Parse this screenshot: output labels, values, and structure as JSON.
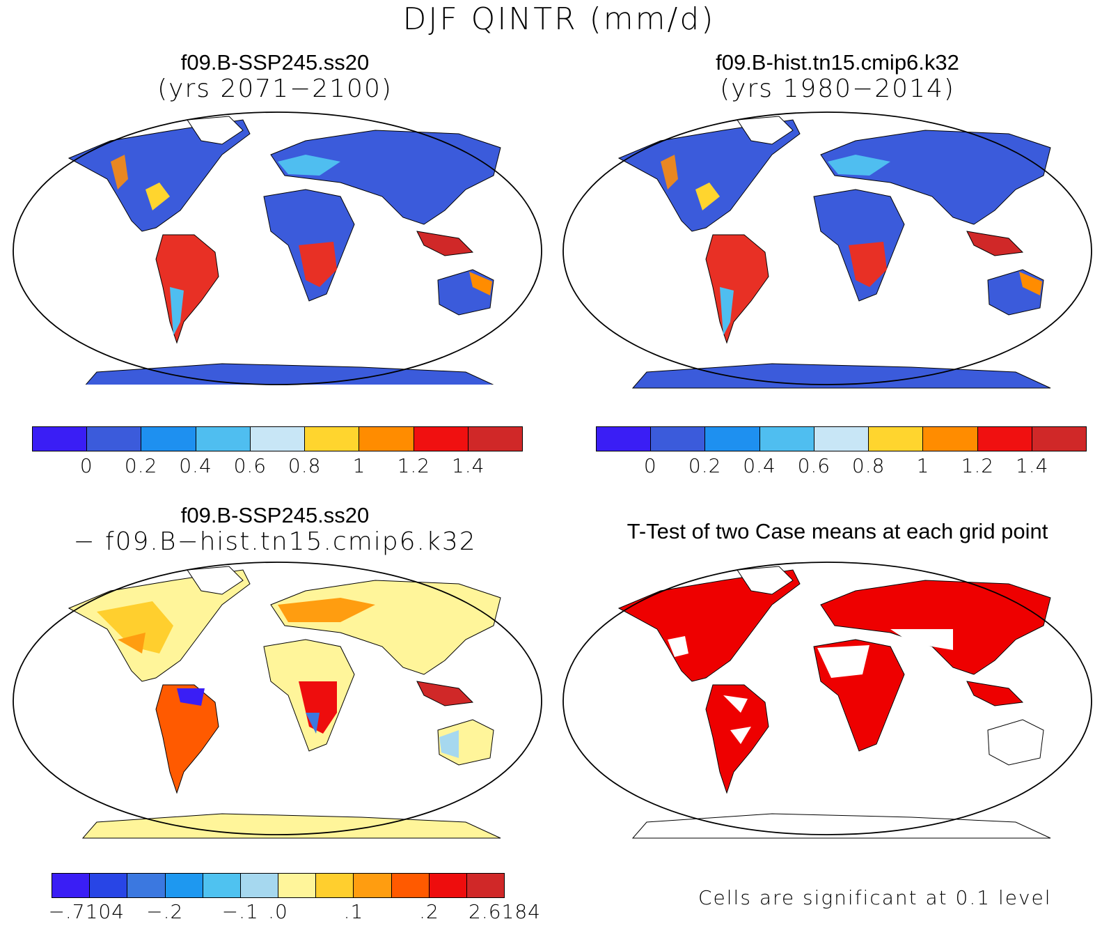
{
  "figure": {
    "title": "DJF QINTR (mm/d)"
  },
  "panels": [
    {
      "title": "f09.B-SSP245.ss20",
      "subtitle": "(yrs 2071−2100)"
    },
    {
      "title": "f09.B-hist.tn15.cmip6.k32",
      "subtitle": "(yrs 1980−2014)"
    },
    {
      "title": "f09.B-SSP245.ss20",
      "subtitle": "− f09.B−hist.tn15.cmip6.k32"
    },
    {
      "title": "T-Test of two Case means at each grid point",
      "note": "Cells are significant at 0.1 level"
    }
  ],
  "colorbars": {
    "absolute": {
      "labels": [
        "0",
        "0.2",
        "0.4",
        "0.6",
        "0.8",
        "1",
        "1.2",
        "1.4"
      ],
      "colors": [
        "#3a1ef5",
        "#3b5bdb",
        "#1e90f0",
        "#4fbef0",
        "#c8e6f6",
        "#ffd52e",
        "#ff8c00",
        "#f01010",
        "#d02828"
      ]
    },
    "difference": {
      "labels": [
        "−.7104",
        "−.2",
        "−.1",
        ".0",
        ".1",
        ".2",
        "2.6184"
      ],
      "colors": [
        "#3a1ef5",
        "#2845e6",
        "#3b78e0",
        "#1e98f0",
        "#4fc2f0",
        "#a6d8ef",
        "#fff59a",
        "#ffcf2e",
        "#ff9d10",
        "#ff5a00",
        "#ee0d0d",
        "#d02828"
      ]
    }
  },
  "legend_colors": {
    "significant": "#ee0000"
  }
}
